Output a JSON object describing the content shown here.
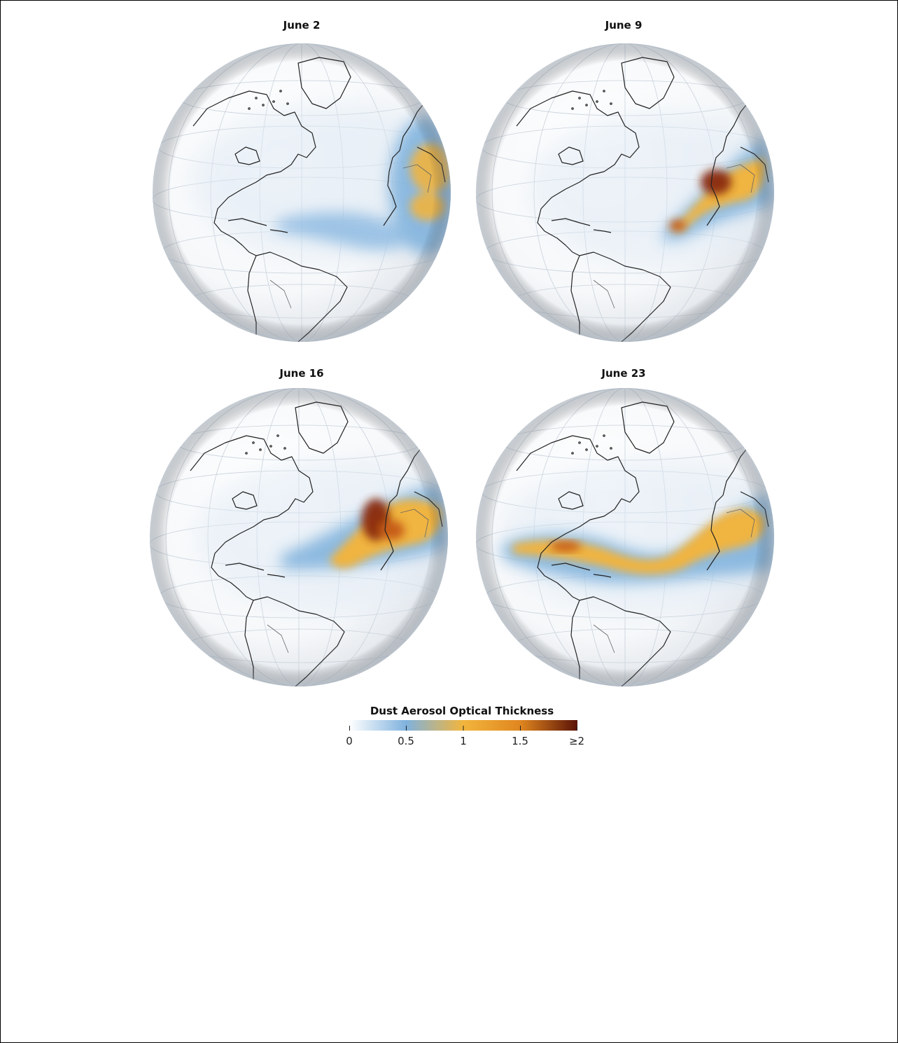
{
  "panels": [
    {
      "title": "June 2"
    },
    {
      "title": "June 9"
    },
    {
      "title": "June 16"
    },
    {
      "title": "June 23"
    }
  ],
  "legend": {
    "title": "Dust Aerosol Optical Thickness",
    "ticks": [
      "0",
      "0.5",
      "1",
      "1.5",
      "≥2"
    ],
    "colors": [
      "#ffffff",
      "#7fb2de",
      "#f2b53c",
      "#e0861f",
      "#5a1206"
    ]
  }
}
